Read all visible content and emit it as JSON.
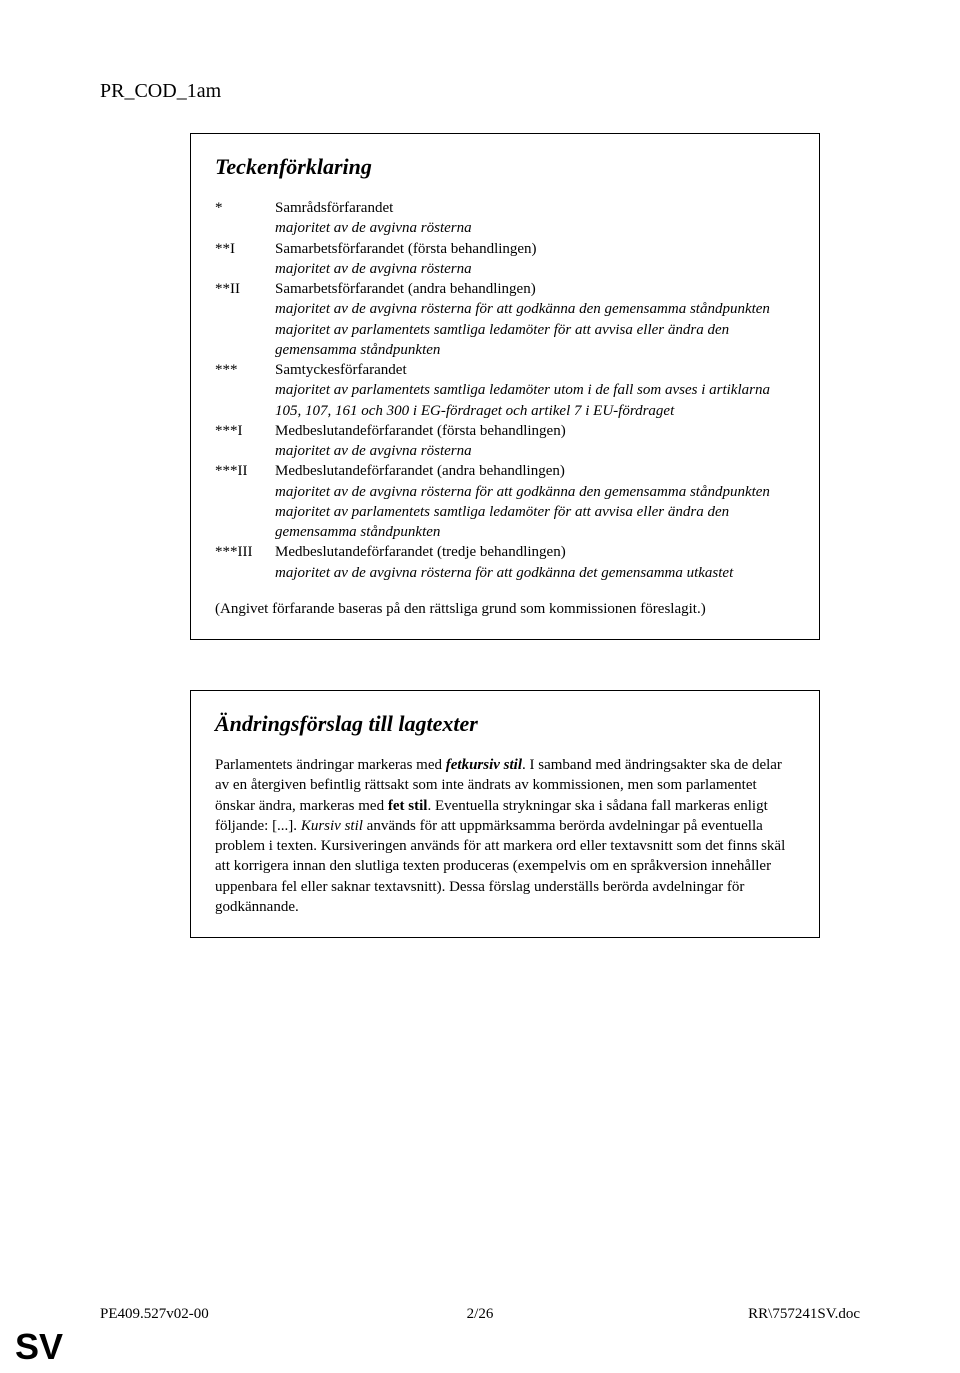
{
  "header": "PR_COD_1am",
  "box1": {
    "title": "Teckenförklaring",
    "rows": [
      {
        "marker": "*",
        "text": "Samrådsförfarandet",
        "italic": false
      },
      {
        "marker": "",
        "text": "majoritet av de avgivna rösterna",
        "italic": true
      },
      {
        "marker": "**I",
        "text": "Samarbetsförfarandet (första behandlingen)",
        "italic": false
      },
      {
        "marker": "",
        "text": "majoritet av de avgivna rösterna",
        "italic": true
      },
      {
        "marker": "**II",
        "text": "Samarbetsförfarandet (andra behandlingen)",
        "italic": false
      },
      {
        "marker": "",
        "text": "majoritet av de avgivna rösterna för att godkänna den gemensamma ståndpunkten",
        "italic": true
      },
      {
        "marker": "",
        "text": "majoritet av parlamentets samtliga ledamöter för att avvisa eller ändra den gemensamma ståndpunkten",
        "italic": true
      },
      {
        "marker": "***",
        "text": "Samtyckesförfarandet",
        "italic": false
      },
      {
        "marker": "",
        "text": "majoritet av parlamentets samtliga ledamöter utom i de fall som avses i artiklarna 105, 107, 161 och 300 i EG-fördraget och artikel 7 i EU-fördraget",
        "italic": true
      },
      {
        "marker": "***I",
        "text": "Medbeslutandeförfarandet (första behandlingen)",
        "italic": false
      },
      {
        "marker": "",
        "text": "majoritet av de avgivna rösterna",
        "italic": true
      },
      {
        "marker": "***II",
        "text": "Medbeslutandeförfarandet (andra behandlingen)",
        "italic": false
      },
      {
        "marker": "",
        "text": "majoritet av de avgivna rösterna för att godkänna den gemensamma ståndpunkten",
        "italic": true
      },
      {
        "marker": "",
        "text": "majoritet av parlamentets samtliga ledamöter för att avvisa eller ändra den gemensamma ståndpunkten",
        "italic": true
      },
      {
        "marker": "***III",
        "text": "Medbeslutandeförfarandet (tredje behandlingen)",
        "italic": false
      },
      {
        "marker": "",
        "text": "majoritet av de avgivna rösterna för att godkänna det gemensamma utkastet",
        "italic": true
      }
    ],
    "note": "(Angivet förfarande baseras på den rättsliga grund som kommissionen föreslagit.)"
  },
  "box2": {
    "title": "Ändringsförslag till lagtexter",
    "p1a": "Parlamentets ändringar markeras med ",
    "p1b": "fetkursiv stil",
    "p1c": ". I samband med ändringsakter ska de delar av en återgiven befintlig rättsakt som inte ändrats av kommissionen, men som parlamentet önskar ändra, markeras med ",
    "p1d": "fet stil",
    "p1e": ". Eventuella strykningar ska i sådana fall markeras enligt följande: [...]. ",
    "p1f": "Kursiv stil",
    "p1g": " används för att uppmärksamma berörda avdelningar på eventuella problem i texten. Kursiveringen används för att markera ord eller textavsnitt som det finns skäl att korrigera innan den slutliga texten produceras (exempelvis om en språkversion innehåller uppenbara fel eller saknar textavsnitt). Dessa förslag underställs berörda avdelningar för godkännande."
  },
  "footer": {
    "left": "PE409.527v02-00",
    "center": "2/26",
    "right": "RR\\757241SV.doc"
  },
  "lang": "SV"
}
